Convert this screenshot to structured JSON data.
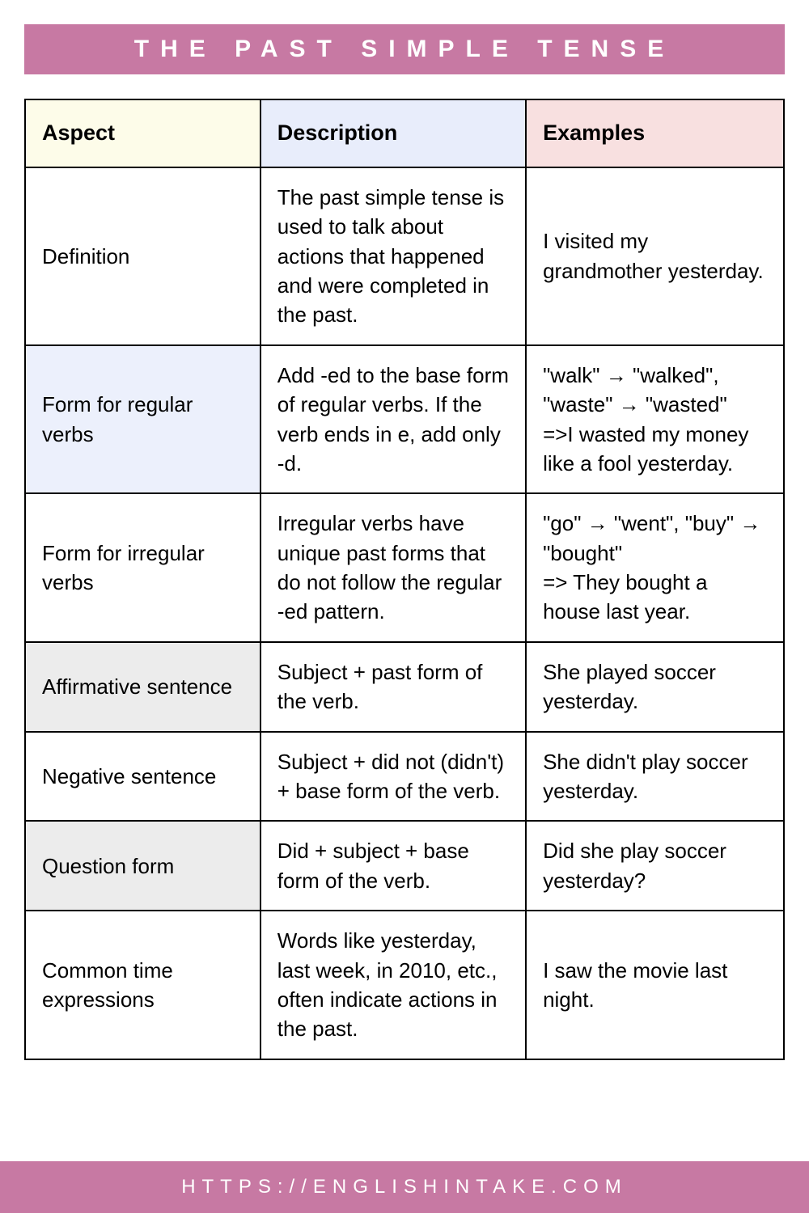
{
  "title": "THE PAST SIMPLE TENSE",
  "footer": "HTTPS://ENGLISHINTAKE.COM",
  "colors": {
    "accent": "#c779a3",
    "header_col1_bg": "#fdfce9",
    "header_col2_bg": "#e8edfb",
    "header_col3_bg": "#f8e0e0",
    "shade_blue": "#ecf0fc",
    "shade_grey": "#ececec",
    "border": "#000000",
    "text": "#000000",
    "title_text": "#ffffff"
  },
  "typography": {
    "title_fontsize": 30,
    "title_letterspacing": 14,
    "header_fontsize": 27,
    "cell_fontsize": 26,
    "footer_fontsize": 24,
    "footer_letterspacing": 8
  },
  "columns": [
    "Aspect",
    "Description",
    "Examples"
  ],
  "column_widths_percent": [
    31,
    35,
    34
  ],
  "rows": [
    {
      "aspect": "Definition",
      "description": "The past simple tense is used to talk about actions that happened and were completed in the past.",
      "example": "I visited my grandmother yesterday.",
      "aspect_shade": null
    },
    {
      "aspect": "Form for regular verbs",
      "description": "Add -ed to the base form of regular verbs. If the verb ends in e, add only -d.",
      "example": "\"walk\" → \"walked\", \"waste\" → \"wasted\"\n=>I wasted my money like a fool yesterday.",
      "aspect_shade": "blue"
    },
    {
      "aspect": "Form for irregular verbs",
      "description": "Irregular verbs have unique past forms that do not follow the regular -ed pattern.",
      "example": "\"go\" → \"went\", \"buy\" → \"bought\"\n=> They bought a house last year.",
      "aspect_shade": null
    },
    {
      "aspect": "Affirmative sentence",
      "description": "Subject + past form of the verb.",
      "example": "She played soccer yesterday.",
      "aspect_shade": "grey"
    },
    {
      "aspect": "Negative sentence",
      "description": "Subject + did not (didn't) + base form of the verb.",
      "example": "She didn't play soccer yesterday.",
      "aspect_shade": null
    },
    {
      "aspect": "Question form",
      "description": "Did + subject + base form of the verb.",
      "example": "Did she play soccer yesterday?",
      "aspect_shade": "grey"
    },
    {
      "aspect": "Common time expressions",
      "description": "Words like yesterday, last week, in 2010, etc., often indicate actions in the past.",
      "example": "I saw the movie last night.",
      "aspect_shade": null
    }
  ]
}
